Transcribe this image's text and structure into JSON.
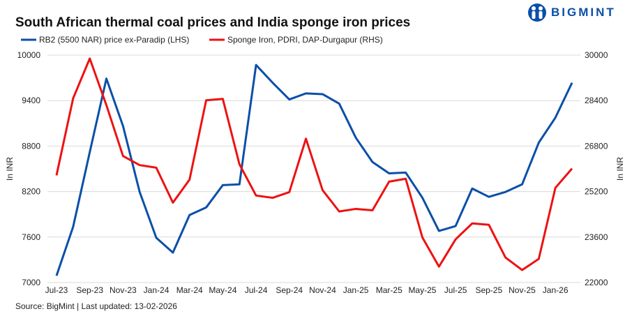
{
  "title": "South African thermal coal prices and India sponge iron prices",
  "logo": {
    "text": "BIGMINT",
    "color": "#0a4fa8"
  },
  "source": "Source: BigMint | Last updated: 13-02-2026",
  "chart_data": {
    "type": "line",
    "title": "South African thermal coal prices and India sponge iron prices",
    "x": [
      "Jul-23",
      "Aug-23",
      "Sep-23",
      "Oct-23",
      "Nov-23",
      "Dec-23",
      "Jan-24",
      "Feb-24",
      "Mar-24",
      "Apr-24",
      "May-24",
      "Jun-24",
      "Jul-24",
      "Aug-24",
      "Sep-24",
      "Oct-24",
      "Nov-24",
      "Dec-24",
      "Jan-25",
      "Feb-25",
      "Mar-25",
      "Apr-25",
      "May-25",
      "Jun-25",
      "Jul-25",
      "Aug-25",
      "Sep-25",
      "Oct-25",
      "Nov-25",
      "Dec-25",
      "Jan-26",
      "Feb-26"
    ],
    "x_tick_labels": [
      "Jul-23",
      "Sep-23",
      "Nov-23",
      "Jan-24",
      "Mar-24",
      "May-24",
      "Jul-24",
      "Sep-24",
      "Nov-24",
      "Jan-25",
      "Mar-25",
      "May-25",
      "Jul-25",
      "Sep-25",
      "Nov-25",
      "Jan-26"
    ],
    "ylabel_left": "In INR",
    "ylabel_right": "In INR",
    "ylim_left": [
      7000,
      10000
    ],
    "yticks_left": [
      7000,
      7600,
      8200,
      8800,
      9400,
      10000
    ],
    "ylim_right": [
      22000,
      30000
    ],
    "yticks_right": [
      22000,
      23600,
      25200,
      26800,
      28400,
      30000
    ],
    "grid": true,
    "legend_placement": "top",
    "series": [
      {
        "name": "RB2 (5500 NAR) price ex-Paradip (LHS)",
        "axis": "left",
        "color": "#0a4fa8",
        "values": [
          7090,
          7735,
          8720,
          9690,
          9065,
          8195,
          7590,
          7395,
          7890,
          7990,
          8285,
          8295,
          9870,
          9635,
          9415,
          9495,
          9485,
          9360,
          8910,
          8590,
          8440,
          8450,
          8120,
          7680,
          7745,
          8240,
          8130,
          8195,
          8295,
          8845,
          9175,
          9635
        ]
      },
      {
        "name": "Sponge Iron, PDRI, DAP-Durgapur (RHS)",
        "axis": "right",
        "color": "#ee1111",
        "values": [
          25770,
          28480,
          29880,
          28240,
          26450,
          26130,
          26040,
          24810,
          25620,
          28410,
          28460,
          26160,
          25060,
          24980,
          25180,
          27060,
          25250,
          24500,
          24590,
          24540,
          25550,
          25650,
          23590,
          22560,
          23520,
          24080,
          24030,
          22880,
          22440,
          22830,
          25330,
          26010
        ]
      }
    ]
  }
}
